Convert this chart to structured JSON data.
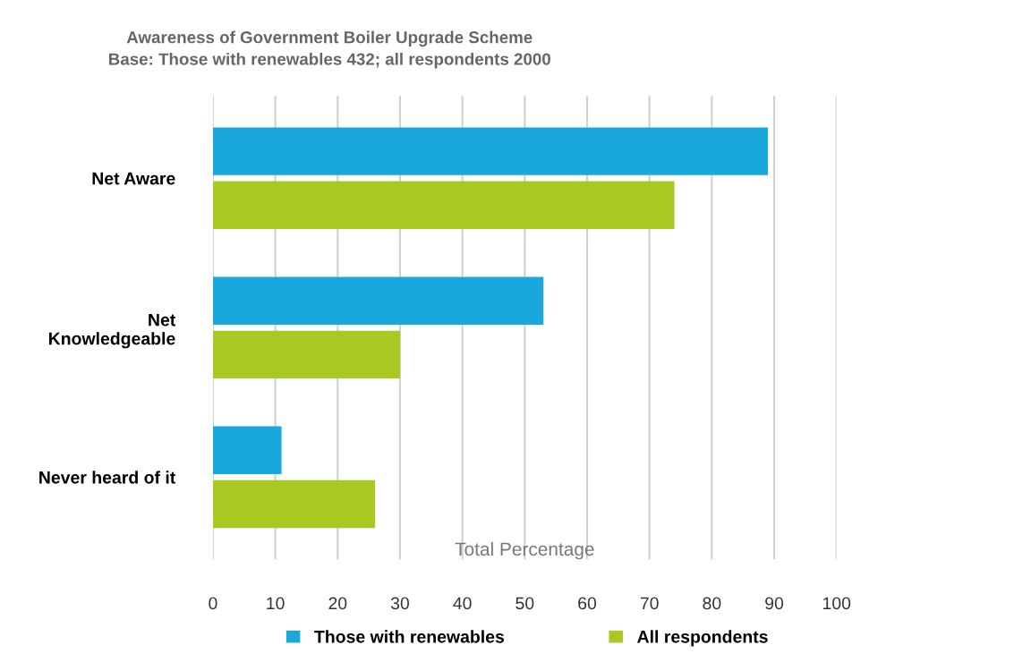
{
  "chart_data": {
    "type": "bar",
    "orientation": "horizontal",
    "title": "Awareness of Government Boiler Upgrade Scheme\nBase: Those with renewables 432; all respondents 2000",
    "xlabel": "Total Percentage",
    "categories": [
      "Net Aware",
      "Net\nKnowledgeable",
      "Never heard of it"
    ],
    "series": [
      {
        "name": "Those with renewables",
        "color": "#1aa7dc",
        "values": [
          89,
          53,
          11
        ]
      },
      {
        "name": "All respondents",
        "color": "#a8c822",
        "values": [
          74,
          30,
          26
        ]
      }
    ],
    "xlim": [
      0,
      100
    ],
    "xticks": [
      0,
      10,
      20,
      30,
      40,
      50,
      60,
      70,
      80,
      90,
      100
    ],
    "grid": "x",
    "legend": "bottom"
  }
}
